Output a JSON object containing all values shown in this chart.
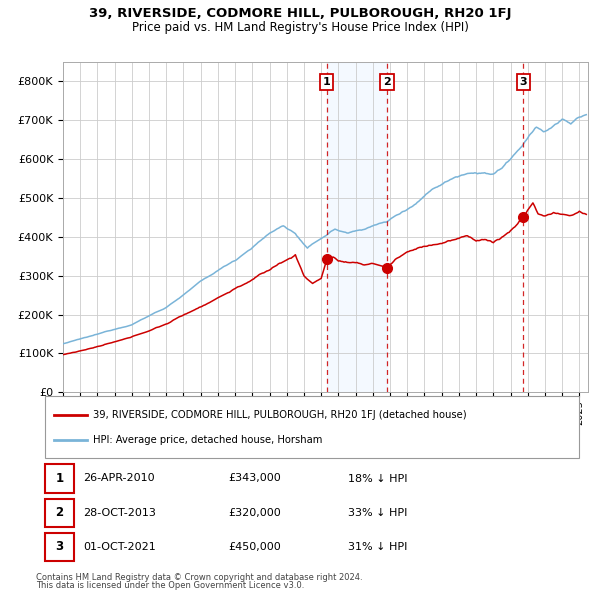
{
  "title": "39, RIVERSIDE, CODMORE HILL, PULBOROUGH, RH20 1FJ",
  "subtitle": "Price paid vs. HM Land Registry's House Price Index (HPI)",
  "legend_line1": "39, RIVERSIDE, CODMORE HILL, PULBOROUGH, RH20 1FJ (detached house)",
  "legend_line2": "HPI: Average price, detached house, Horsham",
  "footer1": "Contains HM Land Registry data © Crown copyright and database right 2024.",
  "footer2": "This data is licensed under the Open Government Licence v3.0.",
  "table": [
    {
      "num": "1",
      "date": "26-APR-2010",
      "price": "£343,000",
      "hpi": "18% ↓ HPI"
    },
    {
      "num": "2",
      "date": "28-OCT-2013",
      "price": "£320,000",
      "hpi": "33% ↓ HPI"
    },
    {
      "num": "3",
      "date": "01-OCT-2021",
      "price": "£450,000",
      "hpi": "31% ↓ HPI"
    }
  ],
  "sale_dates": [
    2010.32,
    2013.83,
    2021.75
  ],
  "sale_prices": [
    343000,
    320000,
    450000
  ],
  "hpi_color": "#7ab4d8",
  "price_color": "#cc0000",
  "dot_color": "#cc0000",
  "shade_color": "#ddeeff",
  "vline_color": "#cc0000",
  "grid_color": "#cccccc",
  "bg_color": "#ffffff",
  "ylim": [
    0,
    850000
  ],
  "xlim_start": 1995.0,
  "xlim_end": 2025.5
}
